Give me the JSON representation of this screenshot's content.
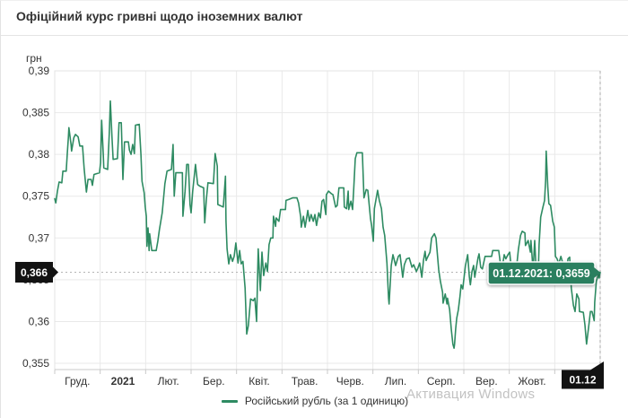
{
  "header": {
    "title": "Офіційний курс гривні щодо іноземних валют"
  },
  "watermark": {
    "text": "Активация Windows"
  },
  "chart_data": {
    "type": "line",
    "title": "Офіційний курс гривні щодо іноземних валют",
    "ylabel": "грн",
    "currency_unit": "грн",
    "ylim": [
      0.35425,
      0.39
    ],
    "grid": true,
    "y_tick_values": [
      0.39,
      0.385,
      0.38,
      0.375,
      0.37,
      0.365,
      0.36,
      0.355
    ],
    "y_tick_labels": [
      "0,39",
      "0,385",
      "0,38",
      "0,375",
      "0,37",
      "0,365",
      "0,36",
      "0,355"
    ],
    "x_range": {
      "start": "01.12.2020",
      "end": "01.12.2021"
    },
    "x_tick_labels": [
      "Груд.",
      "2021",
      "Лют.",
      "Бер.",
      "Квіт.",
      "Трав.",
      "Черв.",
      "Лип.",
      "Серп.",
      "Вер.",
      "Жовт."
    ],
    "x_bold_label_index": 1,
    "line_color": "#2E8B62",
    "tooltip": {
      "text": "01.12.2021: 0,3659",
      "color": "#2B7F5E"
    },
    "crosshair": {
      "y_badge": "0,366",
      "x_badge": "01.12",
      "value": 0.3659
    },
    "legend": {
      "position": "bottom",
      "label": "Російський рубль (за 1 одиницю)"
    },
    "series": [
      {
        "name": "Російський рубль (за 1 одиницю)",
        "points": [
          [
            0.0,
            0.3747
          ],
          [
            0.002,
            0.3742
          ],
          [
            0.005,
            0.3756
          ],
          [
            0.008,
            0.3767
          ],
          [
            0.013,
            0.3766
          ],
          [
            0.015,
            0.378
          ],
          [
            0.021,
            0.378
          ],
          [
            0.023,
            0.3801
          ],
          [
            0.025,
            0.382
          ],
          [
            0.026,
            0.3832
          ],
          [
            0.03,
            0.3812
          ],
          [
            0.031,
            0.3804
          ],
          [
            0.035,
            0.382
          ],
          [
            0.038,
            0.3824
          ],
          [
            0.043,
            0.3821
          ],
          [
            0.046,
            0.381
          ],
          [
            0.051,
            0.381
          ],
          [
            0.054,
            0.3783
          ],
          [
            0.058,
            0.3755
          ],
          [
            0.061,
            0.377
          ],
          [
            0.067,
            0.377
          ],
          [
            0.069,
            0.3763
          ],
          [
            0.072,
            0.3776
          ],
          [
            0.082,
            0.3778
          ],
          [
            0.084,
            0.379
          ],
          [
            0.086,
            0.3841
          ],
          [
            0.089,
            0.38
          ],
          [
            0.09,
            0.3784
          ],
          [
            0.097,
            0.3782
          ],
          [
            0.1,
            0.3825
          ],
          [
            0.102,
            0.3864
          ],
          [
            0.105,
            0.3821
          ],
          [
            0.107,
            0.3794
          ],
          [
            0.115,
            0.3795
          ],
          [
            0.118,
            0.3838
          ],
          [
            0.122,
            0.3838
          ],
          [
            0.125,
            0.377
          ],
          [
            0.128,
            0.3815
          ],
          [
            0.135,
            0.3815
          ],
          [
            0.137,
            0.3805
          ],
          [
            0.14,
            0.38
          ],
          [
            0.143,
            0.3812
          ],
          [
            0.146,
            0.3801
          ],
          [
            0.148,
            0.3835
          ],
          [
            0.155,
            0.3836
          ],
          [
            0.158,
            0.38
          ],
          [
            0.16,
            0.3768
          ],
          [
            0.164,
            0.3754
          ],
          [
            0.166,
            0.3737
          ],
          [
            0.168,
            0.3726
          ],
          [
            0.169,
            0.369
          ],
          [
            0.171,
            0.3712
          ],
          [
            0.173,
            0.3685
          ],
          [
            0.174,
            0.3705
          ],
          [
            0.178,
            0.3685
          ],
          [
            0.186,
            0.3685
          ],
          [
            0.189,
            0.3696
          ],
          [
            0.192,
            0.371
          ],
          [
            0.197,
            0.373
          ],
          [
            0.202,
            0.3765
          ],
          [
            0.206,
            0.378
          ],
          [
            0.214,
            0.3782
          ],
          [
            0.217,
            0.3812
          ],
          [
            0.219,
            0.375
          ],
          [
            0.222,
            0.3778
          ],
          [
            0.234,
            0.3778
          ],
          [
            0.235,
            0.3726
          ],
          [
            0.239,
            0.3756
          ],
          [
            0.242,
            0.3788
          ],
          [
            0.245,
            0.3788
          ],
          [
            0.248,
            0.374
          ],
          [
            0.25,
            0.373
          ],
          [
            0.253,
            0.3756
          ],
          [
            0.258,
            0.3788
          ],
          [
            0.262,
            0.3764
          ],
          [
            0.266,
            0.3762
          ],
          [
            0.273,
            0.376
          ],
          [
            0.275,
            0.3718
          ],
          [
            0.278,
            0.3746
          ],
          [
            0.281,
            0.3766
          ],
          [
            0.291,
            0.3765
          ],
          [
            0.294,
            0.3801
          ],
          [
            0.298,
            0.3786
          ],
          [
            0.299,
            0.374
          ],
          [
            0.309,
            0.3737
          ],
          [
            0.313,
            0.3774
          ],
          [
            0.314,
            0.372
          ],
          [
            0.316,
            0.3687
          ],
          [
            0.319,
            0.3669
          ],
          [
            0.322,
            0.368
          ],
          [
            0.326,
            0.3672
          ],
          [
            0.329,
            0.3678
          ],
          [
            0.332,
            0.3694
          ],
          [
            0.336,
            0.367
          ],
          [
            0.339,
            0.3685
          ],
          [
            0.342,
            0.3669
          ],
          [
            0.345,
            0.3672
          ],
          [
            0.349,
            0.364
          ],
          [
            0.352,
            0.3585
          ],
          [
            0.355,
            0.3595
          ],
          [
            0.359,
            0.3627
          ],
          [
            0.364,
            0.3625
          ],
          [
            0.367,
            0.3628
          ],
          [
            0.37,
            0.36
          ],
          [
            0.373,
            0.3687
          ],
          [
            0.377,
            0.3637
          ],
          [
            0.38,
            0.3683
          ],
          [
            0.383,
            0.3655
          ],
          [
            0.387,
            0.367
          ],
          [
            0.39,
            0.366
          ],
          [
            0.393,
            0.3692
          ],
          [
            0.396,
            0.37
          ],
          [
            0.4,
            0.37
          ],
          [
            0.401,
            0.3726
          ],
          [
            0.405,
            0.3714
          ],
          [
            0.406,
            0.3724
          ],
          [
            0.411,
            0.372
          ],
          [
            0.414,
            0.3734
          ],
          [
            0.423,
            0.3734
          ],
          [
            0.424,
            0.3745
          ],
          [
            0.429,
            0.3746
          ],
          [
            0.436,
            0.3748
          ],
          [
            0.444,
            0.3748
          ],
          [
            0.447,
            0.3742
          ],
          [
            0.451,
            0.3725
          ],
          [
            0.452,
            0.3713
          ],
          [
            0.456,
            0.3726
          ],
          [
            0.459,
            0.3713
          ],
          [
            0.464,
            0.3733
          ],
          [
            0.467,
            0.372
          ],
          [
            0.47,
            0.3728
          ],
          [
            0.474,
            0.372
          ],
          [
            0.477,
            0.3728
          ],
          [
            0.48,
            0.3715
          ],
          [
            0.484,
            0.373
          ],
          [
            0.487,
            0.3724
          ],
          [
            0.49,
            0.3744
          ],
          [
            0.493,
            0.3746
          ],
          [
            0.497,
            0.3728
          ],
          [
            0.498,
            0.3752
          ],
          [
            0.502,
            0.3756
          ],
          [
            0.507,
            0.3753
          ],
          [
            0.51,
            0.3752
          ],
          [
            0.515,
            0.3737
          ],
          [
            0.518,
            0.3739
          ],
          [
            0.521,
            0.376
          ],
          [
            0.526,
            0.376
          ],
          [
            0.53,
            0.376
          ],
          [
            0.531,
            0.3737
          ],
          [
            0.535,
            0.3735
          ],
          [
            0.538,
            0.3756
          ],
          [
            0.539,
            0.3734
          ],
          [
            0.543,
            0.3744
          ],
          [
            0.546,
            0.3734
          ],
          [
            0.548,
            0.3757
          ],
          [
            0.551,
            0.3795
          ],
          [
            0.554,
            0.3802
          ],
          [
            0.564,
            0.3802
          ],
          [
            0.567,
            0.3748
          ],
          [
            0.571,
            0.3758
          ],
          [
            0.574,
            0.3757
          ],
          [
            0.579,
            0.3723
          ],
          [
            0.581,
            0.3715
          ],
          [
            0.584,
            0.3696
          ],
          [
            0.586,
            0.3735
          ],
          [
            0.589,
            0.3746
          ],
          [
            0.592,
            0.3757
          ],
          [
            0.595,
            0.3745
          ],
          [
            0.599,
            0.3735
          ],
          [
            0.602,
            0.3713
          ],
          [
            0.605,
            0.3703
          ],
          [
            0.609,
            0.367
          ],
          [
            0.612,
            0.3628
          ],
          [
            0.613,
            0.3621
          ],
          [
            0.617,
            0.3667
          ],
          [
            0.62,
            0.368
          ],
          [
            0.625,
            0.3667
          ],
          [
            0.63,
            0.3678
          ],
          [
            0.633,
            0.368
          ],
          [
            0.638,
            0.3653
          ],
          [
            0.641,
            0.3668
          ],
          [
            0.645,
            0.3675
          ],
          [
            0.65,
            0.3676
          ],
          [
            0.655,
            0.3665
          ],
          [
            0.658,
            0.3668
          ],
          [
            0.663,
            0.366
          ],
          [
            0.666,
            0.3664
          ],
          [
            0.669,
            0.367
          ],
          [
            0.673,
            0.3653
          ],
          [
            0.676,
            0.3673
          ],
          [
            0.679,
            0.3684
          ],
          [
            0.681,
            0.3673
          ],
          [
            0.682,
            0.3675
          ],
          [
            0.688,
            0.3683
          ],
          [
            0.691,
            0.37
          ],
          [
            0.696,
            0.3705
          ],
          [
            0.699,
            0.37
          ],
          [
            0.704,
            0.3662
          ],
          [
            0.707,
            0.3648
          ],
          [
            0.711,
            0.3635
          ],
          [
            0.712,
            0.3622
          ],
          [
            0.716,
            0.3633
          ],
          [
            0.719,
            0.3621
          ],
          [
            0.72,
            0.3628
          ],
          [
            0.724,
            0.3614
          ],
          [
            0.727,
            0.3591
          ],
          [
            0.73,
            0.3573
          ],
          [
            0.732,
            0.3568
          ],
          [
            0.733,
            0.3573
          ],
          [
            0.735,
            0.3591
          ],
          [
            0.737,
            0.3604
          ],
          [
            0.74,
            0.3614
          ],
          [
            0.743,
            0.363
          ],
          [
            0.745,
            0.3644
          ],
          [
            0.748,
            0.3639
          ],
          [
            0.753,
            0.3667
          ],
          [
            0.757,
            0.368
          ],
          [
            0.76,
            0.3654
          ],
          [
            0.762,
            0.3644
          ],
          [
            0.765,
            0.366
          ],
          [
            0.768,
            0.3667
          ],
          [
            0.77,
            0.3653
          ],
          [
            0.776,
            0.3676
          ],
          [
            0.778,
            0.3681
          ],
          [
            0.781,
            0.3665
          ],
          [
            0.784,
            0.3663
          ],
          [
            0.789,
            0.3678
          ],
          [
            0.801,
            0.3678
          ],
          [
            0.803,
            0.3685
          ],
          [
            0.814,
            0.3685
          ],
          [
            0.817,
            0.367
          ],
          [
            0.821,
            0.3667
          ],
          [
            0.824,
            0.368
          ],
          [
            0.827,
            0.3675
          ],
          [
            0.831,
            0.368
          ],
          [
            0.834,
            0.3683
          ],
          [
            0.837,
            0.3664
          ],
          [
            0.84,
            0.3657
          ],
          [
            0.844,
            0.3664
          ],
          [
            0.847,
            0.3667
          ],
          [
            0.85,
            0.3686
          ],
          [
            0.854,
            0.3703
          ],
          [
            0.857,
            0.3708
          ],
          [
            0.862,
            0.3706
          ],
          [
            0.863,
            0.3691
          ],
          [
            0.868,
            0.3697
          ],
          [
            0.872,
            0.3683
          ],
          [
            0.873,
            0.3697
          ],
          [
            0.877,
            0.3661
          ],
          [
            0.88,
            0.3697
          ],
          [
            0.883,
            0.3655
          ],
          [
            0.887,
            0.367
          ],
          [
            0.888,
            0.3692
          ],
          [
            0.891,
            0.3725
          ],
          [
            0.895,
            0.3737
          ],
          [
            0.898,
            0.3745
          ],
          [
            0.9,
            0.3769
          ],
          [
            0.901,
            0.3804
          ],
          [
            0.904,
            0.3761
          ],
          [
            0.906,
            0.3741
          ],
          [
            0.909,
            0.3739
          ],
          [
            0.913,
            0.372
          ],
          [
            0.916,
            0.3713
          ],
          [
            0.918,
            0.3678
          ],
          [
            0.921,
            0.3675
          ],
          [
            0.924,
            0.3669
          ],
          [
            0.928,
            0.3678
          ],
          [
            0.931,
            0.3671
          ],
          [
            0.934,
            0.3662
          ],
          [
            0.938,
            0.3655
          ],
          [
            0.941,
            0.3675
          ],
          [
            0.944,
            0.3677
          ],
          [
            0.947,
            0.364
          ],
          [
            0.951,
            0.3619
          ],
          [
            0.954,
            0.3612
          ],
          [
            0.957,
            0.3633
          ],
          [
            0.961,
            0.3627
          ],
          [
            0.962,
            0.3612
          ],
          [
            0.969,
            0.3611
          ],
          [
            0.972,
            0.3596
          ],
          [
            0.975,
            0.3573
          ],
          [
            0.979,
            0.3594
          ],
          [
            0.982,
            0.3612
          ],
          [
            0.985,
            0.3612
          ],
          [
            0.989,
            0.3601
          ],
          [
            0.99,
            0.3623
          ],
          [
            0.993,
            0.3648
          ],
          [
            0.997,
            0.3657
          ],
          [
            0.998,
            0.3652
          ],
          [
            1.0,
            0.3659
          ]
        ]
      }
    ]
  }
}
